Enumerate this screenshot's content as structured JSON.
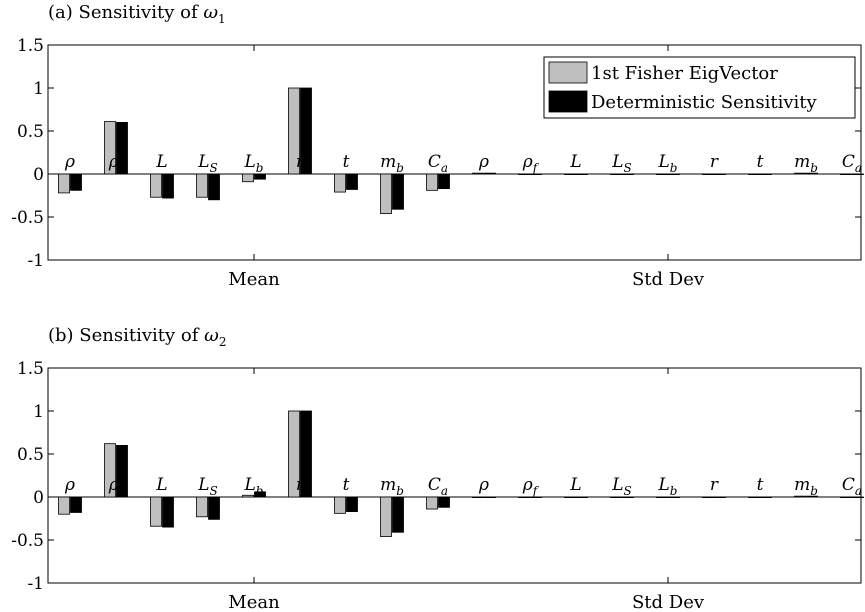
{
  "chart_data": [
    {
      "type": "bar",
      "title": "(a) Sensitivity of ω₁",
      "title_parts": {
        "text": "(a) Sensitivity of ",
        "symbol": "ω",
        "sub": "1"
      },
      "ylim": [
        -1,
        1.5
      ],
      "yticks": [
        "-1",
        "-0.5",
        "0",
        "0.5",
        "1",
        "1.5"
      ],
      "ytick_values": [
        -1,
        -0.5,
        0,
        0.5,
        1,
        1.5
      ],
      "grid": false,
      "legend_position": "top-right",
      "groups": [
        "Mean",
        "Std Dev"
      ],
      "categories": [
        {
          "base": "ρ",
          "sub": ""
        },
        {
          "base": "ρ",
          "sub": "f"
        },
        {
          "base": "L",
          "sub": ""
        },
        {
          "base": "L",
          "sub": "S"
        },
        {
          "base": "L",
          "sub": "b"
        },
        {
          "base": "r",
          "sub": ""
        },
        {
          "base": "t",
          "sub": ""
        },
        {
          "base": "m",
          "sub": "b"
        },
        {
          "base": "C",
          "sub": "a"
        },
        {
          "base": "ρ",
          "sub": ""
        },
        {
          "base": "ρ",
          "sub": "f"
        },
        {
          "base": "L",
          "sub": ""
        },
        {
          "base": "L",
          "sub": "S"
        },
        {
          "base": "L",
          "sub": "b"
        },
        {
          "base": "r",
          "sub": ""
        },
        {
          "base": "t",
          "sub": ""
        },
        {
          "base": "m",
          "sub": "b"
        },
        {
          "base": "C",
          "sub": "a"
        }
      ],
      "series": [
        {
          "name": "1st Fisher EigVector",
          "color": "#bfbfbf",
          "values": [
            -0.22,
            0.61,
            -0.27,
            -0.27,
            -0.09,
            1.0,
            -0.21,
            -0.46,
            -0.19,
            0.01,
            0.0,
            0.0,
            0.0,
            0.0,
            0.0,
            0.0,
            0.01,
            0.0
          ]
        },
        {
          "name": "Deterministic Sensitivity",
          "color": "#000000",
          "values": [
            -0.19,
            0.6,
            -0.28,
            -0.3,
            -0.06,
            1.0,
            -0.18,
            -0.41,
            -0.17,
            0.01,
            0.0,
            0.0,
            0.0,
            0.0,
            0.0,
            0.0,
            0.01,
            0.0
          ]
        }
      ]
    },
    {
      "type": "bar",
      "title": "(b) Sensitivity of ω₂",
      "title_parts": {
        "text": "(b) Sensitivity of ",
        "symbol": "ω",
        "sub": "2"
      },
      "ylim": [
        -1,
        1.5
      ],
      "yticks": [
        "-1",
        "-0.5",
        "0",
        "0.5",
        "1",
        "1.5"
      ],
      "ytick_values": [
        -1,
        -0.5,
        0,
        0.5,
        1,
        1.5
      ],
      "grid": false,
      "legend_position": "none",
      "groups": [
        "Mean",
        "Std Dev"
      ],
      "categories": [
        {
          "base": "ρ",
          "sub": ""
        },
        {
          "base": "ρ",
          "sub": "f"
        },
        {
          "base": "L",
          "sub": ""
        },
        {
          "base": "L",
          "sub": "S"
        },
        {
          "base": "L",
          "sub": "b"
        },
        {
          "base": "r",
          "sub": ""
        },
        {
          "base": "t",
          "sub": ""
        },
        {
          "base": "m",
          "sub": "b"
        },
        {
          "base": "C",
          "sub": "a"
        },
        {
          "base": "ρ",
          "sub": ""
        },
        {
          "base": "ρ",
          "sub": "f"
        },
        {
          "base": "L",
          "sub": ""
        },
        {
          "base": "L",
          "sub": "S"
        },
        {
          "base": "L",
          "sub": "b"
        },
        {
          "base": "r",
          "sub": ""
        },
        {
          "base": "t",
          "sub": ""
        },
        {
          "base": "m",
          "sub": "b"
        },
        {
          "base": "C",
          "sub": "a"
        }
      ],
      "series": [
        {
          "name": "1st Fisher EigVector",
          "color": "#bfbfbf",
          "values": [
            -0.2,
            0.62,
            -0.34,
            -0.23,
            0.02,
            1.0,
            -0.19,
            -0.46,
            -0.14,
            0.0,
            0.0,
            0.0,
            0.0,
            0.0,
            0.0,
            0.0,
            0.01,
            0.0
          ]
        },
        {
          "name": "Deterministic Sensitivity",
          "color": "#000000",
          "values": [
            -0.18,
            0.6,
            -0.35,
            -0.26,
            0.06,
            1.0,
            -0.17,
            -0.41,
            -0.12,
            0.0,
            0.0,
            0.0,
            0.0,
            0.0,
            0.0,
            0.0,
            0.01,
            0.0
          ]
        }
      ]
    }
  ]
}
